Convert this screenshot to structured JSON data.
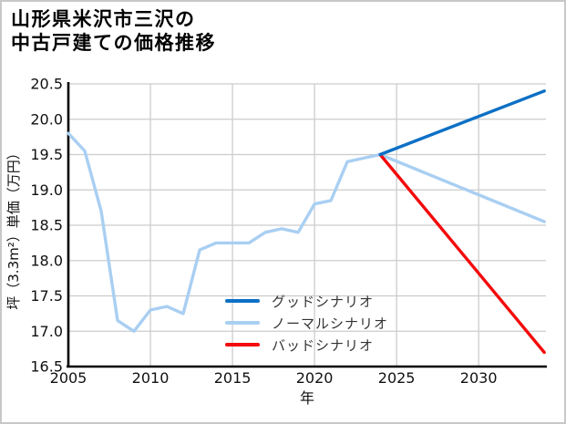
{
  "title": {
    "line1": "山形県米沢市三沢の",
    "line2": "中古戸建ての価格推移"
  },
  "chart_data": {
    "type": "line",
    "title": "山形県米沢市三沢の中古戸建ての価格推移",
    "xlabel": "年",
    "ylabel": "坪（3.3m²）単価（万円）",
    "xlim": [
      2005,
      2034.1
    ],
    "ylim": [
      16.5,
      20.5
    ],
    "x_ticks": [
      "2005",
      "2010",
      "2015",
      "2020",
      "2025",
      "2030"
    ],
    "y_ticks": [
      "16.5",
      "17.0",
      "17.5",
      "18.0",
      "18.5",
      "19.0",
      "19.5",
      "20.0",
      "20.5"
    ],
    "grid": true,
    "legend_position": "inside lower-center, frameless",
    "colors": {
      "grid": "#cccccc",
      "axis": "#000000",
      "tick_text": "#111111"
    },
    "series": [
      {
        "name": "グッドシナリオ",
        "slug": "good-scenario",
        "color": "#0d70c5",
        "x": [
          2024,
          2034
        ],
        "values": [
          19.5,
          20.4
        ]
      },
      {
        "name": "ノーマルシナリオ",
        "slug": "normal-scenario",
        "color": "#a9cff2",
        "x": [
          2005,
          2006,
          2007,
          2008,
          2009,
          2010,
          2011,
          2012,
          2013,
          2014,
          2015,
          2016,
          2017,
          2018,
          2019,
          2020,
          2021,
          2022,
          2023,
          2024,
          2034
        ],
        "values": [
          19.8,
          19.55,
          18.7,
          17.15,
          17.0,
          17.3,
          17.35,
          17.25,
          18.15,
          18.25,
          18.25,
          18.25,
          18.4,
          18.45,
          18.4,
          18.8,
          18.85,
          19.4,
          19.45,
          19.5,
          18.55
        ]
      },
      {
        "name": "バッドシナリオ",
        "slug": "bad-scenario",
        "color": "#f30b0b",
        "x": [
          2024,
          2034
        ],
        "values": [
          19.5,
          16.7
        ]
      }
    ]
  }
}
